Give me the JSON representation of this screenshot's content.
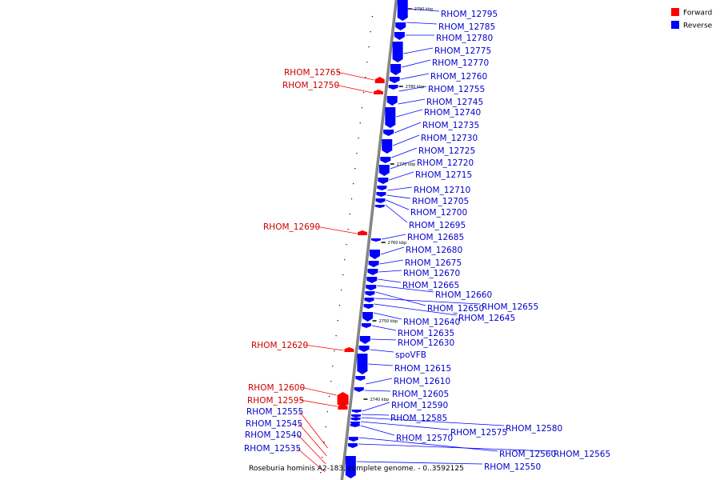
{
  "caption": "Roseburia hominis A2-183, complete genome. - 0..3592125",
  "legend": [
    {
      "label": "Forward",
      "color": "#ff0000"
    },
    {
      "label": "Reverse",
      "color": "#0000ff"
    }
  ],
  "colors": {
    "forward": "#ff0000",
    "reverse": "#0000ff",
    "forward_text": "#cc0000",
    "reverse_text": "#0000cc",
    "backbone": "#888888"
  },
  "scale_ticks": [
    "2790 kbp",
    "2780 kbp",
    "2770 kbp",
    "2760 kbp",
    "2750 kbp",
    "2740 kbp"
  ],
  "forward_genes": [
    "RHOM_12765",
    "RHOM_12750",
    "RHOM_12690",
    "RHOM_12620",
    "RHOM_12600",
    "RHOM_12595",
    "RHOM_12555",
    "RHOM_12545",
    "RHOM_12540",
    "RHOM_12535"
  ],
  "reverse_genes": [
    "RHOM_12795",
    "RHOM_12785",
    "RHOM_12780",
    "RHOM_12775",
    "RHOM_12770",
    "RHOM_12760",
    "RHOM_12755",
    "RHOM_12745",
    "RHOM_12740",
    "RHOM_12735",
    "RHOM_12730",
    "RHOM_12725",
    "RHOM_12720",
    "RHOM_12715",
    "RHOM_12710",
    "RHOM_12705",
    "RHOM_12700",
    "RHOM_12695",
    "RHOM_12685",
    "RHOM_12680",
    "RHOM_12675",
    "RHOM_12670",
    "RHOM_12665",
    "RHOM_12660",
    "RHOM_12655",
    "RHOM_12650",
    "RHOM_12645",
    "RHOM_12640",
    "RHOM_12635",
    "RHOM_12630",
    "spoVFB",
    "RHOM_12615",
    "RHOM_12610",
    "RHOM_12605",
    "RHOM_12590",
    "RHOM_12585",
    "RHOM_12580",
    "RHOM_12575",
    "RHOM_12570",
    "RHOM_12565",
    "RHOM_12560",
    "RHOM_12550"
  ]
}
